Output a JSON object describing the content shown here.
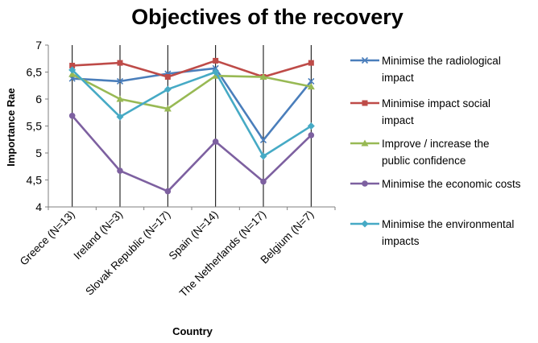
{
  "chart_data": {
    "type": "line",
    "title": "Objectives of the recovery",
    "xlabel": "Country",
    "ylabel": "Importance Rae",
    "ylim": [
      4,
      7
    ],
    "yticks": [
      "4",
      "4,5",
      "5",
      "5,5",
      "6",
      "6,5",
      "7"
    ],
    "categories": [
      "Greece (N=13)",
      "Ireland (N=3)",
      "Slovak Republic (N=17)",
      "Spain (N=14)",
      "The Netherlands (N=17)",
      "Belgium (N=7)"
    ],
    "grid": false,
    "legend_position": "right",
    "series": [
      {
        "name": "Minimise the radiological impact",
        "legend_lines": [
          "Minimise the radiological",
          "impact"
        ],
        "color": "#4a7ebb",
        "marker": "x",
        "values": [
          6.38,
          6.33,
          6.47,
          6.57,
          5.24,
          6.33
        ]
      },
      {
        "name": "Minimise impact social impact",
        "legend_lines": [
          "Minimise impact social",
          "impact"
        ],
        "color": "#be4b48",
        "marker": "square",
        "values": [
          6.62,
          6.67,
          6.41,
          6.71,
          6.41,
          6.67
        ]
      },
      {
        "name": "Improve / increase the public confidence",
        "legend_lines": [
          "Improve / increase the",
          "public confidence"
        ],
        "color": "#98b954",
        "marker": "triangle",
        "values": [
          6.46,
          6.0,
          5.82,
          6.43,
          6.41,
          6.23
        ]
      },
      {
        "name": "Minimise the economic costs",
        "legend_lines": [
          "Minimise the economic costs"
        ],
        "color": "#7d60a0",
        "marker": "circle",
        "values": [
          5.69,
          4.67,
          4.29,
          5.21,
          4.47,
          5.33
        ]
      },
      {
        "name": "Minimise the environmental impacts",
        "legend_lines": [
          "Minimise the environmental",
          "impacts"
        ],
        "color": "#46aac5",
        "marker": "diamond",
        "values": [
          6.54,
          5.67,
          6.18,
          6.5,
          4.94,
          5.5
        ]
      }
    ]
  }
}
